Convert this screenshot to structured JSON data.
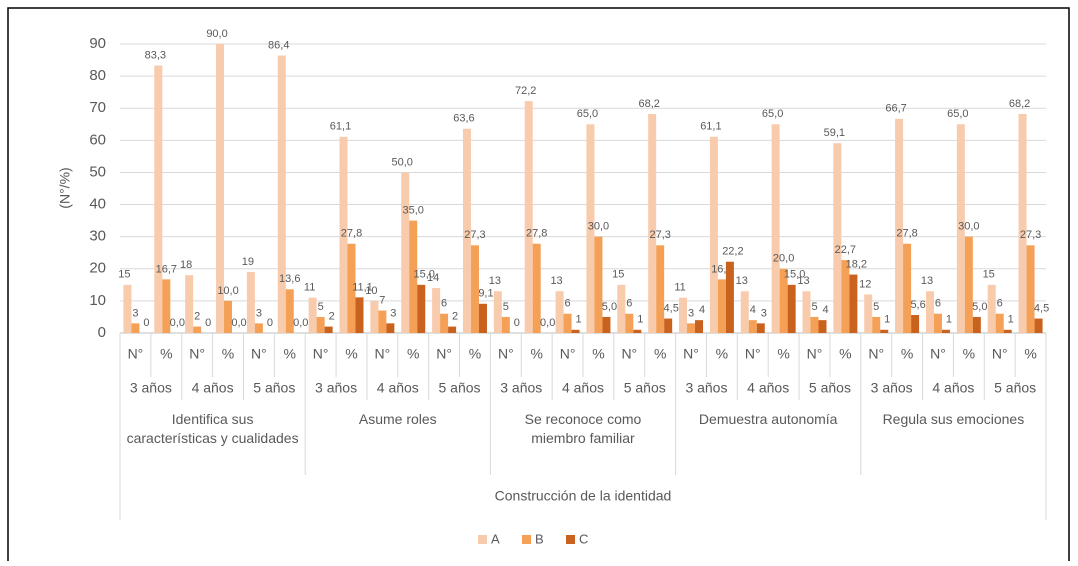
{
  "chart_data": {
    "type": "bar",
    "ylabel": "(N°/%)",
    "ylim": [
      0,
      90
    ],
    "yticks": [
      0,
      10,
      20,
      30,
      40,
      50,
      60,
      70,
      80,
      90
    ],
    "grid": true,
    "categories": [
      "N°",
      "%",
      "N°",
      "%",
      "N°",
      "%",
      "N°",
      "%",
      "N°",
      "%",
      "N°",
      "%",
      "N°",
      "%",
      "N°",
      "%",
      "N°",
      "%",
      "N°",
      "%",
      "N°",
      "%",
      "N°",
      "%",
      "N°",
      "%",
      "N°",
      "%",
      "N°",
      "%"
    ],
    "age_groups": [
      "3 años",
      "4 años",
      "5 años",
      "3 años",
      "4 años",
      "5 años",
      "3 años",
      "4 años",
      "5 años",
      "3 años",
      "4 años",
      "5 años",
      "3 años",
      "4 años",
      "5 años"
    ],
    "dimension_groups": [
      "Identifica sus características y cualidades",
      "Asume roles",
      "Se reconoce como miembro familiar",
      "Demuestra autonomía",
      "Regula sus emociones"
    ],
    "top_group": "Construcción de la identidad",
    "legend": "bottom",
    "series": [
      {
        "name": "A",
        "color": "#f8cbad",
        "values": [
          15,
          83.3,
          18,
          90.0,
          19,
          86.4,
          11,
          61.1,
          10,
          50.0,
          14,
          63.6,
          13,
          72.2,
          13,
          65.0,
          15,
          68.2,
          11,
          61.1,
          13,
          65.0,
          13,
          59.1,
          12,
          66.7,
          13,
          65.0,
          15,
          68.2
        ],
        "value_labels": [
          "15",
          "83,3",
          "18",
          "90,0",
          "19",
          "86,4",
          "11",
          "61,1",
          "10",
          "50,0",
          "14",
          "63,6",
          "13",
          "72,2",
          "13",
          "65,0",
          "15",
          "68,2",
          "11",
          "61,1",
          "13",
          "65,0",
          "13",
          "59,1",
          "12",
          "66,7",
          "13",
          "65,0",
          "15",
          "68,2"
        ]
      },
      {
        "name": "B",
        "color": "#f4a056",
        "values": [
          3,
          16.7,
          2,
          10.0,
          3,
          13.6,
          5,
          27.8,
          7,
          35.0,
          6,
          27.3,
          5,
          27.8,
          6,
          30.0,
          6,
          27.3,
          3,
          16.7,
          4,
          20.0,
          5,
          22.7,
          5,
          27.8,
          6,
          30.0,
          6,
          27.3
        ],
        "value_labels": [
          "3",
          "16,7",
          "2",
          "10,0",
          "3",
          "13,6",
          "5",
          "27,8",
          "7",
          "35,0",
          "6",
          "27,3",
          "5",
          "27,8",
          "6",
          "30,0",
          "6",
          "27,3",
          "3",
          "16,7",
          "4",
          "20,0",
          "5",
          "22,7",
          "5",
          "27,8",
          "6",
          "30,0",
          "6",
          "27,3"
        ]
      },
      {
        "name": "C",
        "color": "#c8621e",
        "values": [
          0,
          0.0,
          0,
          0.0,
          0,
          0.0,
          2,
          11.1,
          3,
          15.0,
          2,
          9.1,
          0,
          0.0,
          1,
          5.0,
          1,
          4.5,
          4,
          22.2,
          3,
          15.0,
          4,
          18.2,
          1,
          5.6,
          1,
          5.0,
          1,
          4.5
        ],
        "value_labels": [
          "0",
          "0,0",
          "0",
          "0,0",
          "0",
          "0,0",
          "2",
          "11,1",
          "3",
          "15,0",
          "2",
          "9,1",
          "0",
          "0,0",
          "1",
          "5,0",
          "1",
          "4,5",
          "4",
          "22,2",
          "3",
          "15,0",
          "4",
          "18,2",
          "1",
          "5,6",
          "1",
          "5,0",
          "1",
          "4,5"
        ]
      }
    ]
  }
}
